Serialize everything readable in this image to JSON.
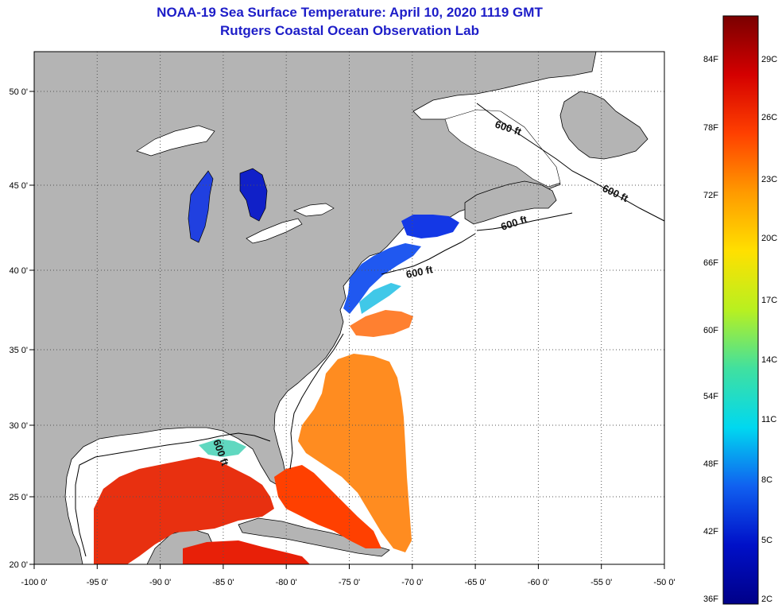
{
  "title_line1": "NOAA-19 Sea Surface Temperature:  April 10, 2020 1119 GMT",
  "title_line2": "Rutgers Coastal Ocean Observation Lab",
  "lon_ticks": [
    "-100 0'",
    "-95 0'",
    "-90 0'",
    "-85 0'",
    "-80 0'",
    "-75 0'",
    "-70 0'",
    "-65 0'",
    "-60 0'",
    "-55 0'",
    "-50 0'"
  ],
  "lat_ticks": [
    "50 0'",
    "45 0'",
    "40 0'",
    "35 0'",
    "30 0'",
    "25 0'",
    "20 0'"
  ],
  "contour_label": "600 ft",
  "colorbar": {
    "fahrenheit": [
      "84F",
      "78F",
      "72F",
      "66F",
      "60F",
      "54F",
      "48F",
      "42F",
      "36F"
    ],
    "celsius": [
      "29C",
      "26C",
      "23C",
      "20C",
      "17C",
      "14C",
      "11C",
      "8C",
      "5C",
      "2C"
    ],
    "stops": [
      "#7a0000",
      "#d40000",
      "#ff4000",
      "#ff9a00",
      "#ffe000",
      "#b8f020",
      "#40e0a0",
      "#00d8f0",
      "#1060f0",
      "#0010c8",
      "#000088"
    ]
  },
  "colors": {
    "land": "#b4b4b4",
    "ocean_no_data": "#ffffff",
    "title": "#1d1dc8",
    "grid": "#555555"
  }
}
